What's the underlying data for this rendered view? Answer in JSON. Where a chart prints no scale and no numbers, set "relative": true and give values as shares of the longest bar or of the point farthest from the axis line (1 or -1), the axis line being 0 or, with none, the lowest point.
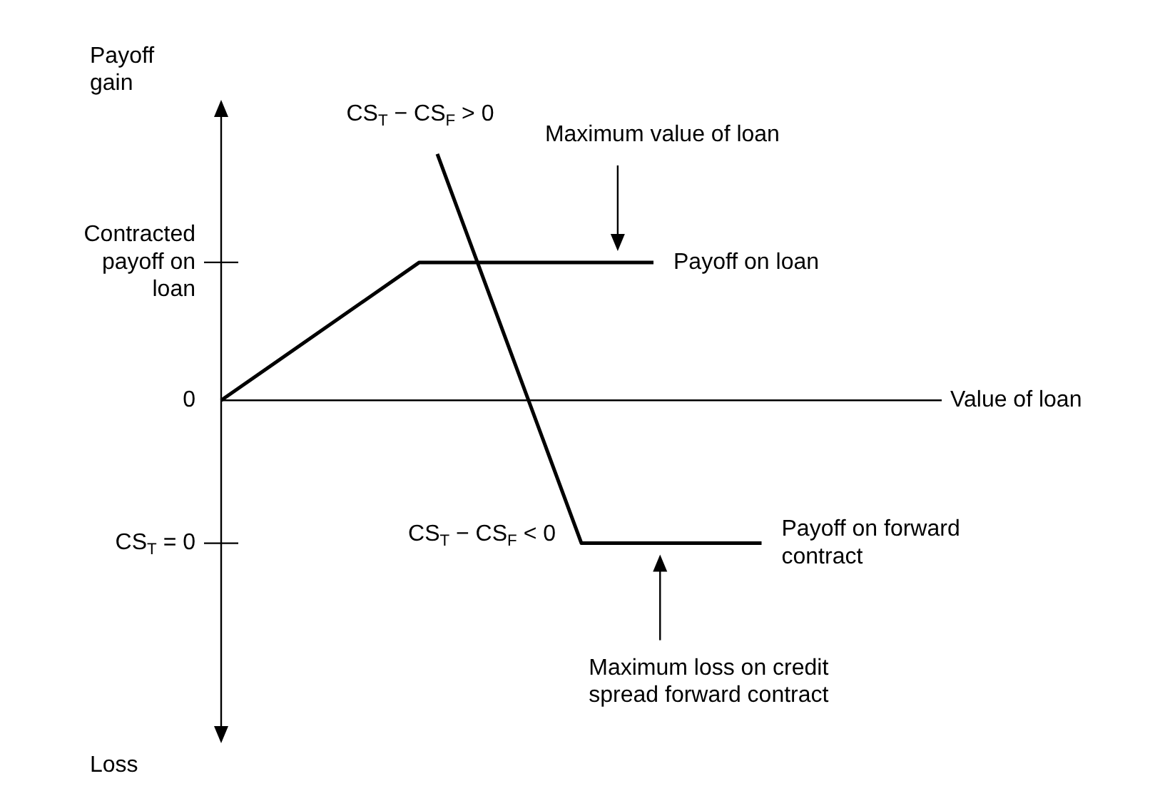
{
  "chart_data": {
    "type": "line",
    "relative": true,
    "legend": false,
    "marker": "none",
    "line_style": "solid",
    "ylabel": "Payoff gain",
    "xlabel": "Value of loan",
    "categories": [
      null,
      null,
      null,
      null,
      null,
      null,
      null,
      null,
      null,
      null,
      null,
      null,
      null,
      null,
      null,
      null,
      null,
      null,
      null,
      null,
      null,
      null,
      null,
      null,
      null,
      null,
      null,
      null,
      null,
      null,
      null,
      null,
      null,
      null,
      null,
      null,
      null,
      null,
      null,
      null,
      null
    ],
    "series": [
      {
        "name": "Payoff on loan",
        "color": "#000000",
        "values": [
          0,
          null,
          null,
          null,
          null,
          null,
          null,
          null,
          null,
          null,
          null,
          0.56,
          null,
          null,
          null,
          null,
          null,
          null,
          null,
          null,
          null,
          null,
          null,
          null,
          0.56,
          null,
          null,
          null,
          null,
          null,
          null,
          null,
          null,
          null,
          null,
          null,
          null,
          null,
          null,
          null,
          null
        ]
      },
      {
        "name": "Payoff on forward contract",
        "color": "#000000",
        "values": [
          null,
          null,
          null,
          null,
          null,
          null,
          null,
          null,
          null,
          null,
          null,
          null,
          1,
          null,
          null,
          null,
          null,
          null,
          null,
          null,
          -0.58,
          null,
          null,
          null,
          null,
          null,
          null,
          null,
          null,
          null,
          -0.58,
          null,
          null,
          null,
          null,
          null,
          null,
          null,
          null,
          null,
          null
        ]
      }
    ],
    "annotations": [
      "Contracted payoff on loan",
      "0",
      "CS$_{T}$ = 0",
      "CS$_{T}$ − CS$_{F}$ > 0",
      "CS$_{T}$ − CS$_{F}$ < 0",
      "Maximum value of loan",
      "Maximum loss on credit spread forward contract",
      "Loss"
    ]
  }
}
